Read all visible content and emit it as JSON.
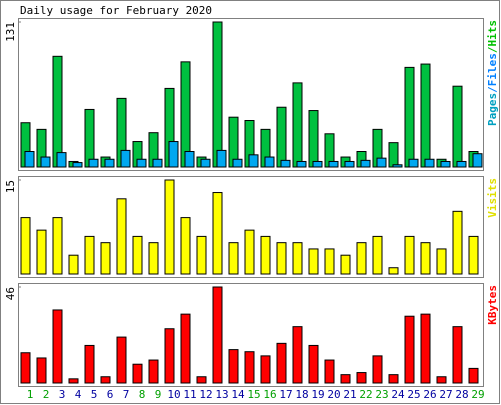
{
  "chart_data": {
    "type": "bar",
    "title": "Daily usage for February 2020",
    "categories": [
      "1",
      "2",
      "3",
      "4",
      "5",
      "6",
      "7",
      "8",
      "9",
      "10",
      "11",
      "12",
      "13",
      "14",
      "15",
      "16",
      "17",
      "18",
      "19",
      "20",
      "21",
      "22",
      "23",
      "24",
      "25",
      "26",
      "27",
      "28",
      "29"
    ],
    "category_colors": [
      "#00a000",
      "#00a000",
      "#0000a0",
      "#0000a0",
      "#0000a0",
      "#0000a0",
      "#0000a0",
      "#00a000",
      "#00a000",
      "#0000a0",
      "#0000a0",
      "#0000a0",
      "#0000a0",
      "#0000a0",
      "#00a000",
      "#00a000",
      "#0000a0",
      "#0000a0",
      "#0000a0",
      "#0000a0",
      "#0000a0",
      "#00a000",
      "#00a000",
      "#0000a0",
      "#0000a0",
      "#0000a0",
      "#0000a0",
      "#0000a0",
      "#00a000"
    ],
    "panels": [
      {
        "ylabel": [
          {
            "text": "Pages",
            "color": "#00a0c0"
          },
          {
            "text": "/",
            "color": "#0080ff"
          },
          {
            "text": "Files",
            "color": "#0080ff"
          },
          {
            "text": "/",
            "color": "#00c000"
          },
          {
            "text": "Hits",
            "color": "#00c000"
          }
        ],
        "ylim": [
          0,
          131
        ],
        "yticks": [
          131
        ],
        "series": [
          {
            "name": "Hits",
            "color": "#00c040",
            "values": [
              40,
              34,
              100,
              5,
              52,
              9,
              62,
              23,
              31,
              71,
              95,
              9,
              131,
              45,
              42,
              34,
              54,
              76,
              51,
              30,
              9,
              14,
              34,
              22,
              90,
              93,
              7,
              73,
              14
            ]
          },
          {
            "name": "Files",
            "color": "#00a8f0",
            "values": [
              14,
              9,
              13,
              4,
              7,
              7,
              15,
              7,
              7,
              23,
              14,
              7,
              15,
              7,
              11,
              9,
              6,
              5,
              5,
              5,
              5,
              6,
              8,
              2,
              7,
              7,
              5,
              5,
              12
            ]
          }
        ]
      },
      {
        "ylabel": [
          {
            "text": "Visits",
            "color": "#e0e000"
          }
        ],
        "ylim": [
          0,
          15
        ],
        "yticks": [
          15
        ],
        "series": [
          {
            "name": "Visits",
            "color": "#ffff00",
            "values": [
              9,
              7,
              9,
              3,
              6,
              5,
              12,
              6,
              5,
              15,
              9,
              6,
              13,
              5,
              7,
              6,
              5,
              5,
              4,
              4,
              3,
              5,
              6,
              1,
              6,
              5,
              4,
              10,
              6
            ]
          }
        ]
      },
      {
        "ylabel": [
          {
            "text": "KBytes",
            "color": "#ff0000"
          }
        ],
        "ylim": [
          0,
          46
        ],
        "yticks": [
          46
        ],
        "series": [
          {
            "name": "KBytes",
            "color": "#ff0000",
            "values": [
              14.5,
              12,
              35,
              2,
              18,
              3,
              22,
              9,
              11,
              26,
              33,
              3,
              46,
              16,
              15,
              13,
              19,
              27,
              18,
              11,
              4,
              5,
              13,
              4,
              32,
              33,
              3,
              27,
              7
            ]
          }
        ]
      }
    ]
  }
}
